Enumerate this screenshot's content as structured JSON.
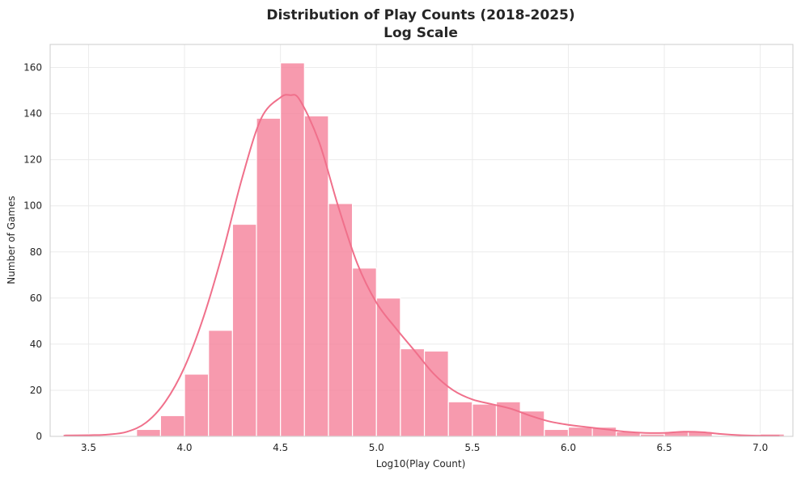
{
  "chart_data": {
    "type": "bar",
    "title": "Distribution of Play Counts (2018-2025)",
    "subtitle": "Log Scale",
    "xlabel": "Log10(Play Count)",
    "ylabel": "Number of Games",
    "xlim": [
      3.3,
      7.17
    ],
    "ylim": [
      0,
      170
    ],
    "xticks": [
      3.5,
      4.0,
      4.5,
      5.0,
      5.5,
      6.0,
      6.5,
      7.0
    ],
    "yticks": [
      0,
      20,
      40,
      60,
      80,
      100,
      120,
      140,
      160
    ],
    "grid": true,
    "bin_width": 0.125,
    "bin_edges": [
      3.375,
      3.5,
      3.625,
      3.75,
      3.875,
      4.0,
      4.125,
      4.25,
      4.375,
      4.5,
      4.625,
      4.75,
      4.875,
      5.0,
      5.125,
      5.25,
      5.375,
      5.5,
      5.625,
      5.75,
      5.875,
      6.0,
      6.125,
      6.25,
      6.375,
      6.5,
      6.625,
      6.75,
      6.875,
      7.0,
      7.125
    ],
    "values": [
      1,
      0,
      0,
      3,
      9,
      27,
      46,
      92,
      138,
      162,
      139,
      101,
      73,
      60,
      38,
      37,
      15,
      14,
      15,
      11,
      3,
      4,
      4,
      2,
      1,
      2,
      2,
      0,
      0,
      1
    ],
    "kde": {
      "x": [
        3.37,
        3.5,
        3.6,
        3.7,
        3.8,
        3.9,
        4.0,
        4.1,
        4.2,
        4.3,
        4.4,
        4.5,
        4.55,
        4.6,
        4.7,
        4.8,
        4.9,
        5.0,
        5.1,
        5.2,
        5.3,
        5.4,
        5.5,
        5.6,
        5.7,
        5.8,
        5.9,
        6.0,
        6.1,
        6.2,
        6.3,
        6.4,
        6.5,
        6.6,
        6.7,
        6.8,
        6.9,
        7.0,
        7.1
      ],
      "y": [
        0.3,
        0.5,
        0.8,
        2,
        6,
        15,
        30,
        52,
        80,
        112,
        138,
        147,
        148,
        146,
        128,
        100,
        75,
        58,
        47,
        37,
        27,
        20,
        16,
        14,
        12,
        9,
        6.5,
        5,
        4,
        3,
        2,
        1.5,
        1.5,
        2,
        1.8,
        1,
        0.5,
        0.3,
        0.2
      ]
    },
    "colors": {
      "bar_fill": "#f5819a",
      "bar_stroke": "#ffffff",
      "kde_line": "#f0708b",
      "grid": "#ebebeb",
      "axes_border": "#cccccc",
      "text": "#262626"
    }
  }
}
